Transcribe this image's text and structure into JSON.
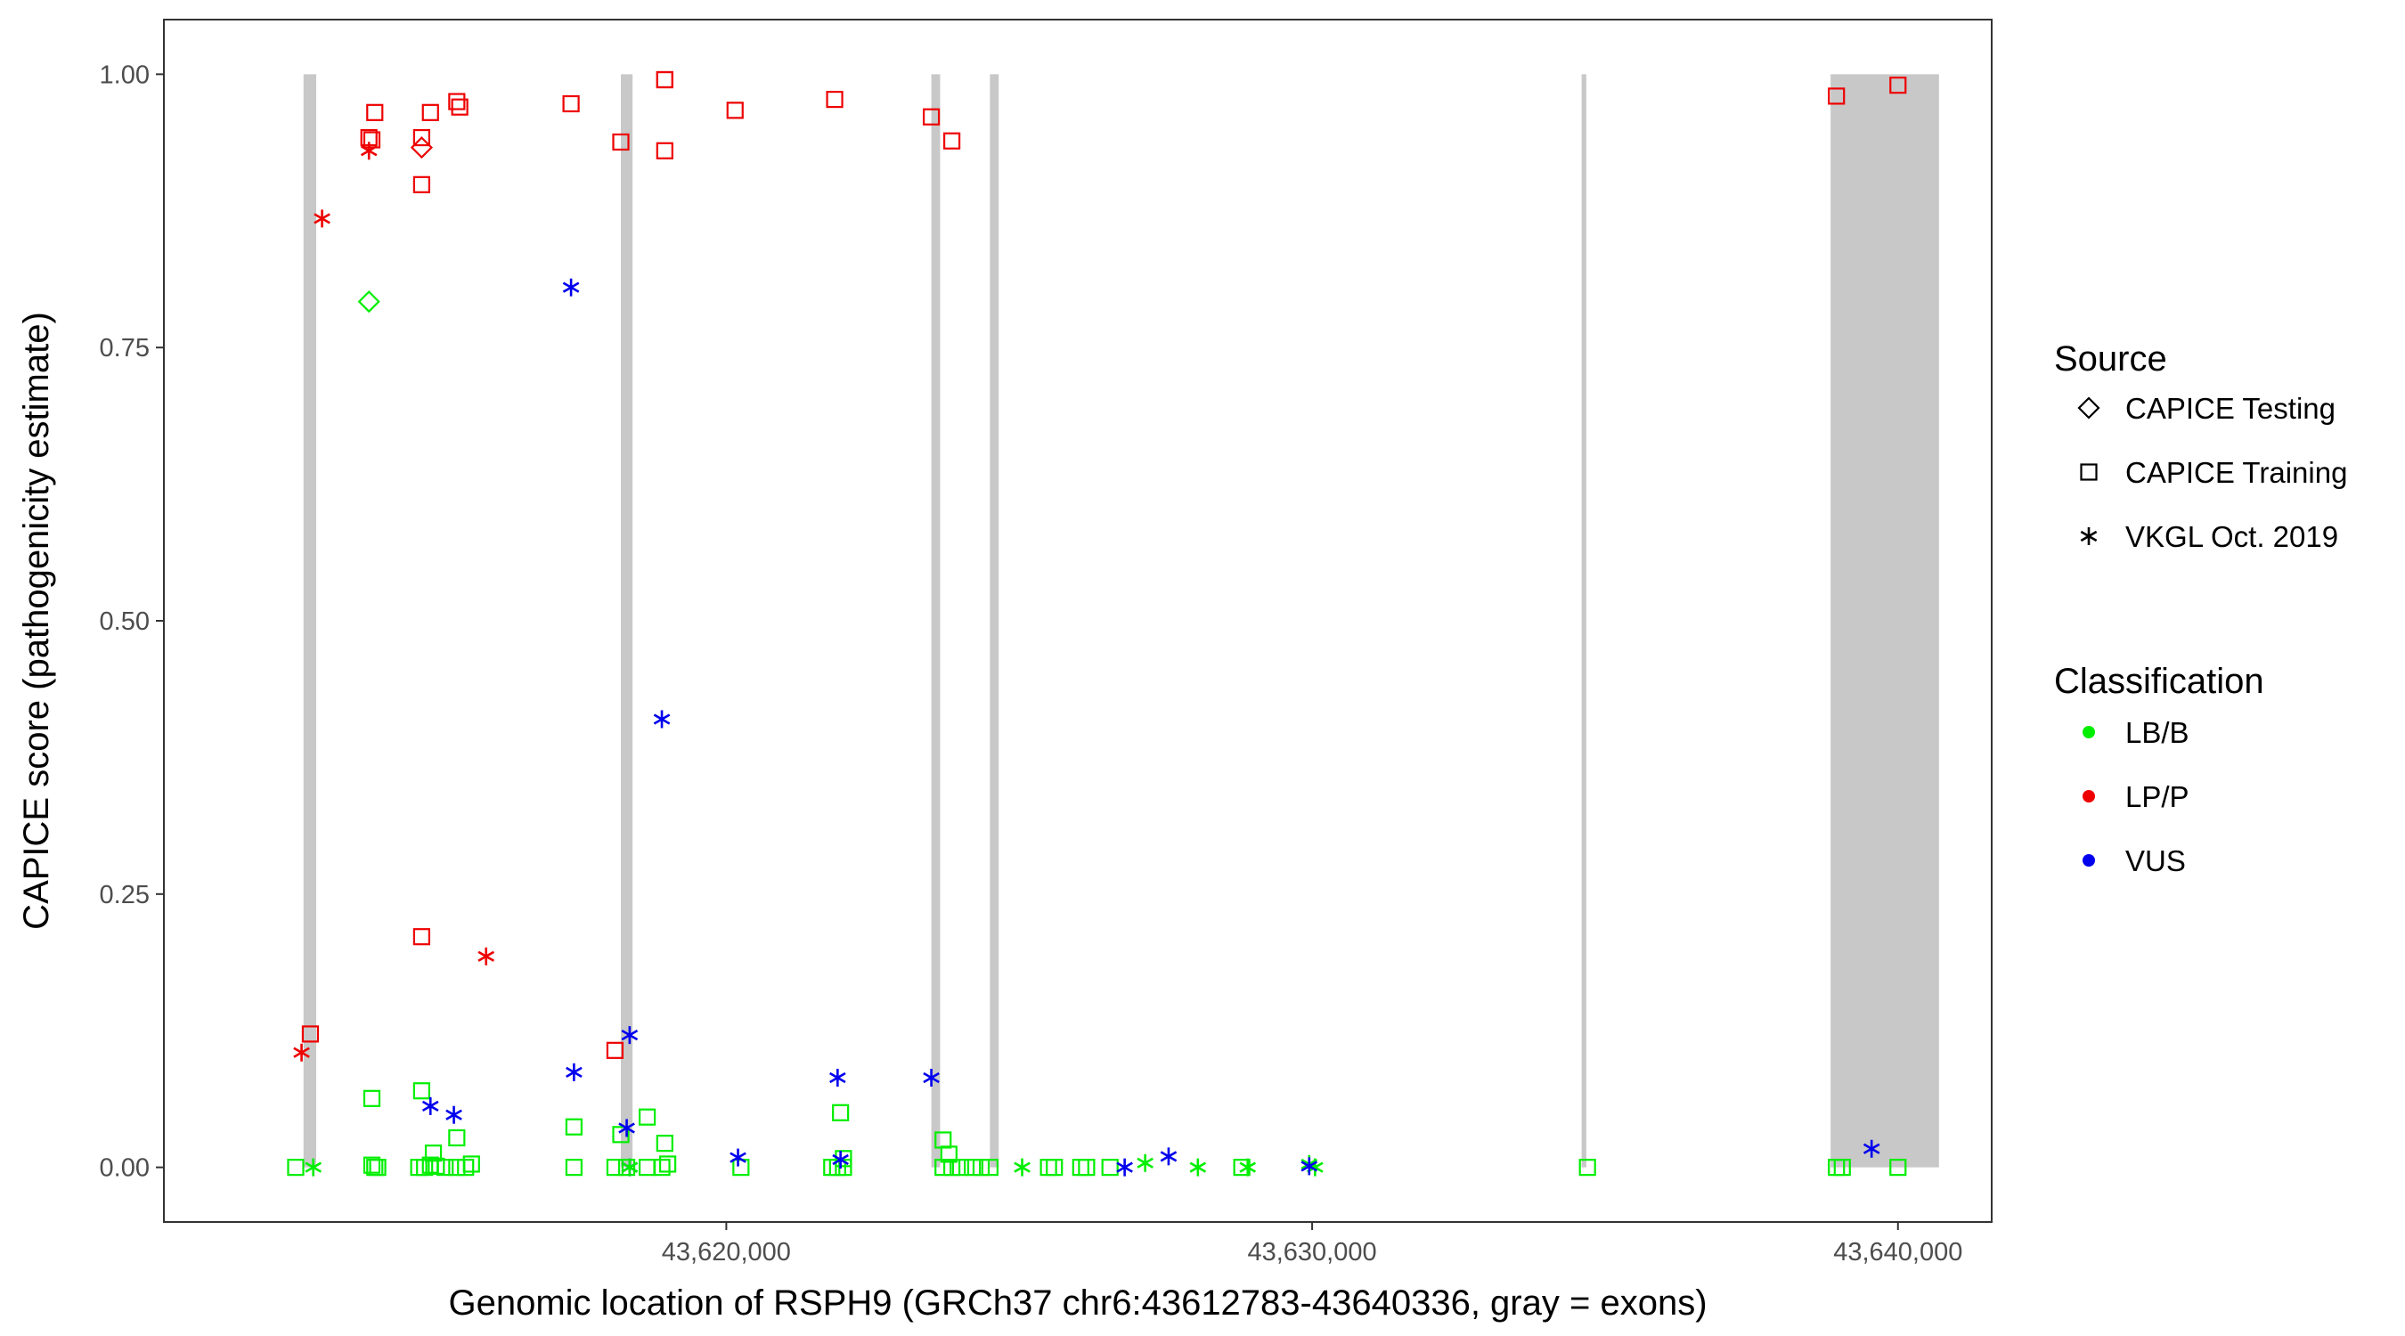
{
  "chart_data": {
    "type": "scatter",
    "xlabel": "Genomic location of RSPH9 (GRCh37 chr6:43612783-43640336, gray = exons)",
    "ylabel": "CAPICE score (pathogenicity estimate)",
    "xlim": [
      43610400,
      43641600
    ],
    "ylim": [
      -0.05,
      1.05
    ],
    "x_ticks": [
      {
        "value": 43620000,
        "label": "43,620,000"
      },
      {
        "value": 43630000,
        "label": "43,630,000"
      },
      {
        "value": 43640000,
        "label": "43,640,000"
      }
    ],
    "y_ticks": [
      {
        "value": 0,
        "label": "0.00"
      },
      {
        "value": 0.25,
        "label": "0.25"
      },
      {
        "value": 0.5,
        "label": "0.50"
      },
      {
        "value": 0.75,
        "label": "0.75"
      },
      {
        "value": 1,
        "label": "1.00"
      }
    ],
    "grid": false,
    "exon_regions": [
      [
        43612783,
        43613000
      ],
      [
        43618200,
        43618400
      ],
      [
        43623500,
        43623650
      ],
      [
        43624500,
        43624650
      ],
      [
        43634600,
        43634680
      ],
      [
        43638850,
        43640700
      ]
    ],
    "legend": {
      "position": "right",
      "source_title": "Source",
      "source_items": [
        {
          "label": "CAPICE Testing",
          "shape": "diamond"
        },
        {
          "label": "CAPICE Training",
          "shape": "square"
        },
        {
          "label": "VKGL Oct. 2019",
          "shape": "asterisk"
        }
      ],
      "class_title": "Classification",
      "class_items": [
        {
          "label": "LB/B",
          "color": "#00ee00"
        },
        {
          "label": "LP/P",
          "color": "#ee0000"
        },
        {
          "label": "VUS",
          "color": "#0000ee"
        }
      ]
    },
    "series": [
      {
        "source": "CAPICE Testing",
        "classification": "LP/P",
        "shape": "diamond",
        "color": "#ee0000",
        "points": [
          [
            43614800,
            0.933
          ]
        ]
      },
      {
        "source": "CAPICE Testing",
        "classification": "LB/B",
        "shape": "diamond",
        "color": "#00ee00",
        "points": [
          [
            43613900,
            0.792
          ]
        ]
      },
      {
        "source": "CAPICE Training",
        "classification": "LP/P",
        "shape": "square",
        "color": "#ee0000",
        "points": [
          [
            43612900,
            0.122
          ],
          [
            43613900,
            0.942
          ],
          [
            43613950,
            0.94
          ],
          [
            43614000,
            0.965
          ],
          [
            43614800,
            0.942
          ],
          [
            43614800,
            0.899
          ],
          [
            43614950,
            0.965
          ],
          [
            43615400,
            0.975
          ],
          [
            43615450,
            0.97
          ],
          [
            43617350,
            0.973
          ],
          [
            43618200,
            0.938
          ],
          [
            43618950,
            0.995
          ],
          [
            43618950,
            0.995
          ],
          [
            43618950,
            0.93
          ],
          [
            43620150,
            0.967
          ],
          [
            43621850,
            0.977
          ],
          [
            43623500,
            0.961
          ],
          [
            43623850,
            0.939
          ],
          [
            43614800,
            0.211
          ],
          [
            43618100,
            0.107
          ],
          [
            43638950,
            0.98
          ],
          [
            43640000,
            0.99
          ]
        ]
      },
      {
        "source": "CAPICE Training",
        "classification": "LB/B",
        "shape": "square",
        "color": "#00ee00",
        "points": [
          [
            43612650,
            0.0
          ],
          [
            43613950,
            0.063
          ],
          [
            43614800,
            0.07
          ],
          [
            43615000,
            0.013
          ],
          [
            43615400,
            0.027
          ],
          [
            43615650,
            0.003
          ],
          [
            43617400,
            0.037
          ],
          [
            43618200,
            0.03
          ],
          [
            43618650,
            0.046
          ],
          [
            43618950,
            0.022
          ],
          [
            43621950,
            0.05
          ],
          [
            43623700,
            0.025
          ],
          [
            43622000,
            0.008
          ],
          [
            43613950,
            0.002
          ],
          [
            43614000,
            0.0
          ],
          [
            43614050,
            0.0
          ],
          [
            43614750,
            0.0
          ],
          [
            43614850,
            0.0
          ],
          [
            43614950,
            0.002
          ],
          [
            43615050,
            0.001
          ],
          [
            43615200,
            0.0
          ],
          [
            43615400,
            0.0
          ],
          [
            43615550,
            0.0
          ],
          [
            43617400,
            0.0
          ],
          [
            43618100,
            0.0
          ],
          [
            43618300,
            0.0
          ],
          [
            43618650,
            0.0
          ],
          [
            43618900,
            0.0
          ],
          [
            43619000,
            0.003
          ],
          [
            43620250,
            0.0
          ],
          [
            43621800,
            0.0
          ],
          [
            43621900,
            0.0
          ],
          [
            43622000,
            0.0
          ],
          [
            43623700,
            0.0
          ],
          [
            43623800,
            0.012
          ],
          [
            43623850,
            0.0
          ],
          [
            43624000,
            0.0
          ],
          [
            43624200,
            0.0
          ],
          [
            43624350,
            0.0
          ],
          [
            43624500,
            0.0
          ],
          [
            43625500,
            0.0
          ],
          [
            43625600,
            0.0
          ],
          [
            43626050,
            0.0
          ],
          [
            43626150,
            0.0
          ],
          [
            43626550,
            0.0
          ],
          [
            43628800,
            0.0
          ],
          [
            43634700,
            0.0
          ],
          [
            43638950,
            0.0
          ],
          [
            43639050,
            0.0
          ],
          [
            43640000,
            0.0
          ]
        ]
      },
      {
        "source": "VKGL Oct. 2019",
        "classification": "LP/P",
        "shape": "asterisk",
        "color": "#ee0000",
        "points": [
          [
            43612750,
            0.105
          ],
          [
            43613100,
            0.868
          ],
          [
            43613900,
            0.93
          ],
          [
            43615900,
            0.193
          ]
        ]
      },
      {
        "source": "VKGL Oct. 2019",
        "classification": "VUS",
        "shape": "asterisk",
        "color": "#0000ee",
        "points": [
          [
            43617350,
            0.805
          ],
          [
            43618900,
            0.41
          ],
          [
            43617400,
            0.087
          ],
          [
            43618350,
            0.121
          ],
          [
            43621900,
            0.082
          ],
          [
            43623500,
            0.082
          ],
          [
            43614950,
            0.056
          ],
          [
            43615350,
            0.048
          ],
          [
            43618300,
            0.036
          ],
          [
            43620200,
            0.009
          ],
          [
            43621950,
            0.007
          ],
          [
            43618350,
            0.0
          ],
          [
            43626800,
            0.0
          ],
          [
            43627550,
            0.01
          ],
          [
            43639550,
            0.017
          ]
        ]
      },
      {
        "source": "VKGL Oct. 2019",
        "classification": "LB/B",
        "shape": "asterisk",
        "color": "#00ee00",
        "points": [
          [
            43612950,
            0.0
          ],
          [
            43618350,
            0.0
          ],
          [
            43625050,
            0.0
          ],
          [
            43627150,
            0.004
          ],
          [
            43628050,
            0.0
          ],
          [
            43628900,
            0.0
          ],
          [
            43629950,
            0.003
          ],
          [
            43630050,
            0.0
          ]
        ]
      },
      {
        "source": "VKGL Oct. 2019",
        "classification": "VUS",
        "shape": "asterisk",
        "color": "#0000ee",
        "points": [
          [
            43629950,
            0.001
          ]
        ]
      }
    ]
  }
}
